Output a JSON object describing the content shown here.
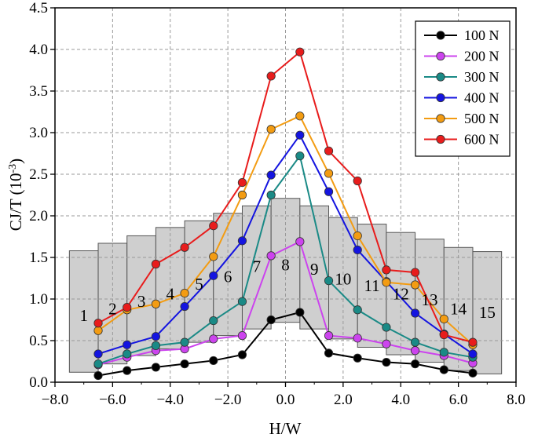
{
  "chart_data": {
    "type": "line",
    "title": "",
    "xlabel": "H/W",
    "ylabel": "CJ/T (10",
    "ylabel_sup": "-3",
    "ylabel_suffix": ")",
    "xlim": [
      -8.0,
      8.0
    ],
    "ylim": [
      0.0,
      4.5
    ],
    "x_ticks": [
      -8.0,
      -6.0,
      -4.0,
      -2.0,
      0.0,
      2.0,
      4.0,
      6.0,
      8.0
    ],
    "x_tick_labels": [
      "−8.0",
      "−6.0",
      "−4.0",
      "−2.0",
      "0.0",
      "2.0",
      "4.0",
      "6.0",
      "8.0"
    ],
    "y_ticks": [
      0.0,
      0.5,
      1.0,
      1.5,
      2.0,
      2.5,
      3.0,
      3.5,
      4.0,
      4.5
    ],
    "y_tick_labels": [
      "0.0",
      "0.5",
      "1.0",
      "1.5",
      "2.0",
      "2.5",
      "3.0",
      "3.5",
      "4.0",
      "4.5"
    ],
    "grid": true,
    "legend_position": "top-right",
    "x": [
      -6.5,
      -5.5,
      -4.5,
      -3.5,
      -2.5,
      -1.5,
      -0.5,
      0.5,
      1.5,
      2.5,
      3.5,
      4.5,
      5.5,
      6.5
    ],
    "series": [
      {
        "name": "100 N",
        "color": "#000000",
        "values": [
          0.08,
          0.14,
          0.18,
          0.22,
          0.26,
          0.33,
          0.75,
          0.84,
          0.35,
          0.29,
          0.24,
          0.22,
          0.15,
          0.11
        ]
      },
      {
        "name": "200 N",
        "color": "#cc44ee",
        "values": [
          0.21,
          0.3,
          0.38,
          0.4,
          0.52,
          0.56,
          1.52,
          1.69,
          0.56,
          0.53,
          0.46,
          0.38,
          0.32,
          0.23
        ]
      },
      {
        "name": "300 N",
        "color": "#1a8a86",
        "values": [
          0.22,
          0.34,
          0.44,
          0.48,
          0.74,
          0.97,
          2.25,
          2.72,
          1.22,
          0.87,
          0.66,
          0.48,
          0.36,
          0.3
        ]
      },
      {
        "name": "400 N",
        "color": "#1414e0",
        "values": [
          0.34,
          0.45,
          0.55,
          0.91,
          1.28,
          1.7,
          2.49,
          2.97,
          2.29,
          1.59,
          1.21,
          0.83,
          0.58,
          0.34
        ]
      },
      {
        "name": "500 N",
        "color": "#f39c12",
        "values": [
          0.62,
          0.87,
          0.94,
          1.07,
          1.51,
          2.25,
          3.04,
          3.2,
          2.51,
          1.76,
          1.2,
          1.17,
          0.76,
          0.45
        ]
      },
      {
        "name": "600 N",
        "color": "#e81c1c",
        "values": [
          0.71,
          0.9,
          1.42,
          1.62,
          1.88,
          2.4,
          3.68,
          3.97,
          2.78,
          2.42,
          1.35,
          1.32,
          0.57,
          0.48
        ]
      }
    ],
    "regions": {
      "fill": "#cfcfcf",
      "labels": [
        "1",
        "2",
        "3",
        "4",
        "5",
        "6",
        "7",
        "8",
        "9",
        "10",
        "11",
        "12",
        "13",
        "14",
        "15"
      ],
      "heights": [
        1.58,
        1.67,
        1.76,
        1.86,
        1.94,
        2.03,
        2.12,
        2.21,
        2.12,
        1.98,
        1.9,
        1.8,
        1.72,
        1.62,
        1.57
      ],
      "bottoms": [
        0.12,
        0.22,
        0.32,
        0.4,
        0.48,
        0.56,
        0.64,
        0.72,
        0.64,
        0.52,
        0.42,
        0.33,
        0.24,
        0.14,
        0.1
      ],
      "label_y": [
        0.8,
        0.88,
        0.97,
        1.06,
        1.18,
        1.27,
        1.39,
        1.41,
        1.36,
        1.24,
        1.16,
        1.06,
        0.99,
        0.88,
        0.84
      ]
    }
  }
}
